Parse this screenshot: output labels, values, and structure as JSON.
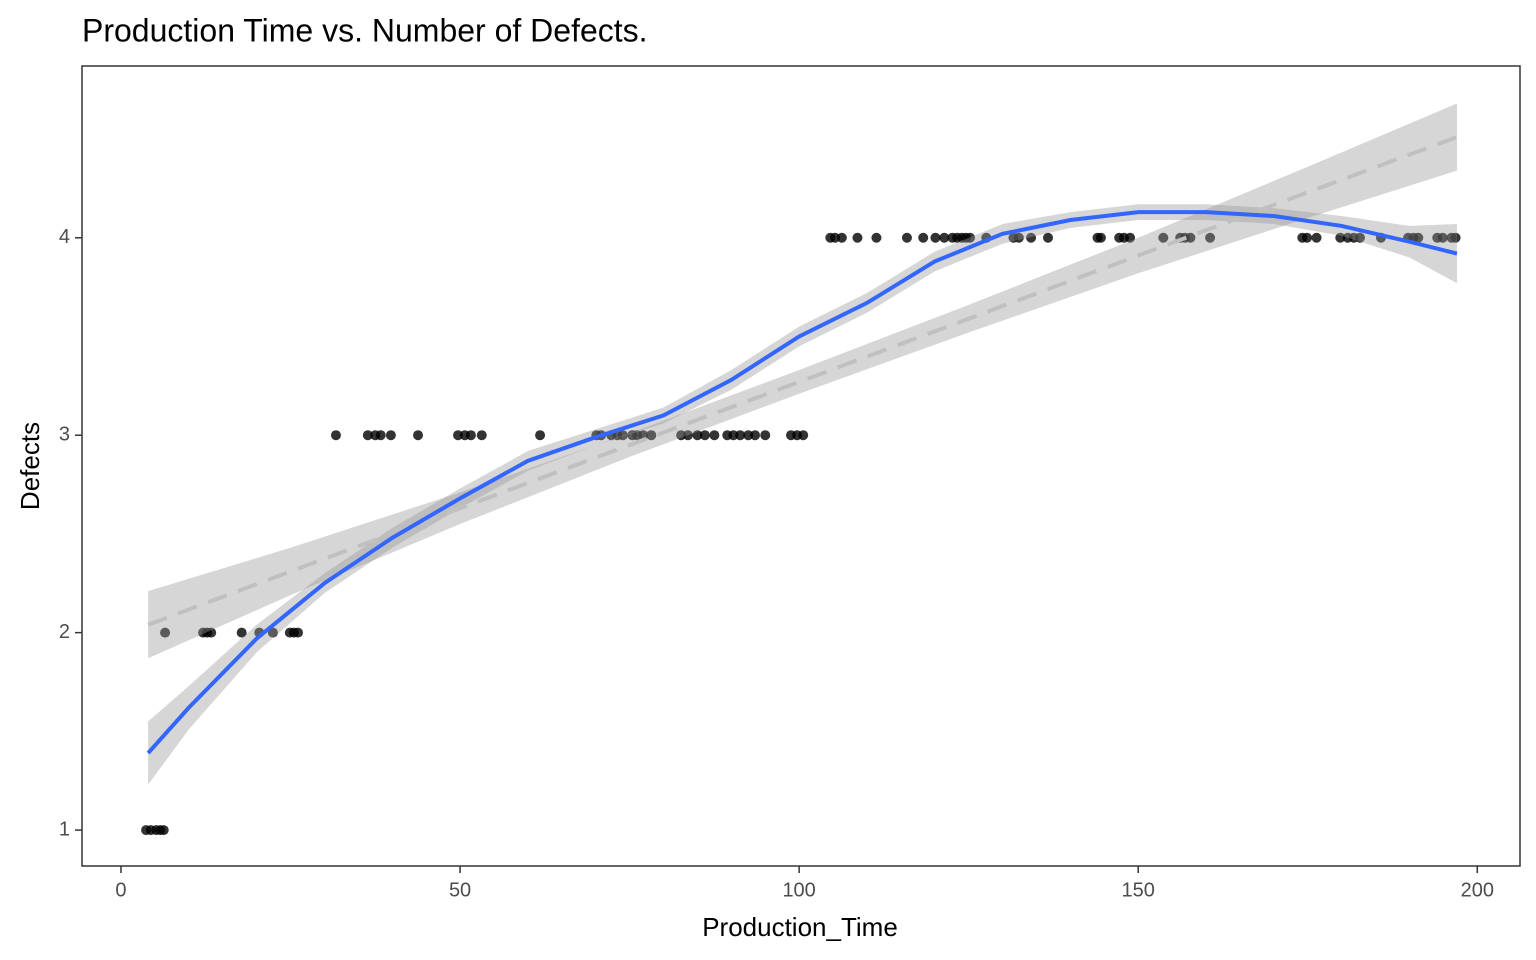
{
  "chart_data": {
    "type": "scatter",
    "title": "Production Time vs. Number of Defects.",
    "x_label": "Production_Time",
    "y_label": "Defects",
    "point_color": "#000000",
    "x": [
      3.7,
      4.4,
      5.2,
      5.8,
      6.3,
      6.5,
      12.1,
      12.7,
      13.3,
      17.8,
      20.4,
      22.4,
      24.9,
      25.5,
      26.1,
      31.7,
      36.4,
      37.5,
      38.3,
      39.8,
      43.8,
      49.7,
      50.7,
      51.6,
      53.2,
      61.8,
      70.1,
      70.8,
      72.3,
      73.2,
      74.0,
      75.4,
      76.1,
      77.0,
      78.2,
      82.6,
      83.6,
      85.0,
      86.1,
      87.5,
      89.4,
      90.3,
      91.3,
      92.5,
      93.5,
      95.0,
      98.8,
      99.7,
      100.6,
      104.6,
      105.3,
      106.3,
      108.6,
      111.4,
      115.9,
      118.3,
      120.1,
      121.4,
      122.6,
      123.3,
      124.0,
      124.6,
      125.2,
      127.6,
      131.6,
      132.4,
      134.2,
      136.7,
      144.0,
      144.5,
      147.2,
      147.9,
      148.8,
      153.7,
      156.2,
      156.9,
      157.7,
      160.6,
      174.2,
      174.9,
      176.3,
      179.8,
      180.9,
      181.8,
      182.7,
      185.8,
      189.8,
      190.6,
      191.3,
      194.1,
      194.9,
      196.2,
      196.8
    ],
    "y": [
      1,
      1,
      1,
      1,
      1,
      2,
      2,
      2,
      2,
      2,
      2,
      2,
      2,
      2,
      2,
      3,
      3,
      3,
      3,
      3,
      3,
      3,
      3,
      3,
      3,
      3,
      3,
      3,
      3,
      3,
      3,
      3,
      3,
      3,
      3,
      3,
      3,
      3,
      3,
      3,
      3,
      3,
      3,
      3,
      3,
      3,
      3,
      3,
      3,
      4,
      4,
      4,
      4,
      4,
      4,
      4,
      4,
      4,
      4,
      4,
      4,
      4,
      4,
      4,
      4,
      4,
      4,
      4,
      4,
      4,
      4,
      4,
      4,
      4,
      4,
      4,
      4,
      4,
      4,
      4,
      4,
      4,
      4,
      4,
      4,
      4,
      4,
      4,
      4,
      4,
      4,
      4,
      4
    ],
    "smooths": [
      {
        "method": "lm",
        "color": "#c0c0c0",
        "dashed": true,
        "x": [
          4,
          25,
          50,
          75,
          100,
          125,
          150,
          175,
          197
        ],
        "y": [
          2.04,
          2.31,
          2.63,
          2.95,
          3.27,
          3.59,
          3.91,
          4.23,
          4.51
        ],
        "lower": [
          1.87,
          2.19,
          2.55,
          2.89,
          3.21,
          3.52,
          3.82,
          4.1,
          4.34
        ],
        "upper": [
          2.21,
          2.43,
          2.71,
          3.01,
          3.33,
          3.66,
          4.0,
          4.36,
          4.68
        ]
      },
      {
        "method": "loess",
        "color": "#3366ff",
        "dashed": false,
        "x": [
          4,
          10,
          20,
          30,
          40,
          50,
          60,
          70,
          80,
          90,
          100,
          110,
          120,
          130,
          140,
          150,
          160,
          170,
          180,
          190,
          197
        ],
        "y": [
          1.39,
          1.62,
          1.97,
          2.25,
          2.48,
          2.68,
          2.87,
          2.99,
          3.1,
          3.28,
          3.5,
          3.67,
          3.88,
          4.02,
          4.09,
          4.13,
          4.13,
          4.11,
          4.06,
          3.98,
          3.92
        ],
        "lower": [
          1.23,
          1.51,
          1.9,
          2.2,
          2.43,
          2.63,
          2.82,
          2.95,
          3.06,
          3.23,
          3.45,
          3.62,
          3.83,
          3.97,
          4.05,
          4.09,
          4.09,
          4.07,
          4.01,
          3.9,
          3.77
        ],
        "upper": [
          1.55,
          1.73,
          2.04,
          2.3,
          2.53,
          2.73,
          2.92,
          3.03,
          3.14,
          3.33,
          3.55,
          3.72,
          3.93,
          4.07,
          4.13,
          4.17,
          4.17,
          4.15,
          4.11,
          4.06,
          4.07
        ]
      }
    ],
    "xlim": [
      -5.75,
      206.3
    ],
    "ylim": [
      0.818,
      4.87
    ],
    "xticks": [
      0,
      50,
      100,
      150,
      200
    ],
    "yticks": [
      1,
      2,
      3,
      4
    ]
  }
}
